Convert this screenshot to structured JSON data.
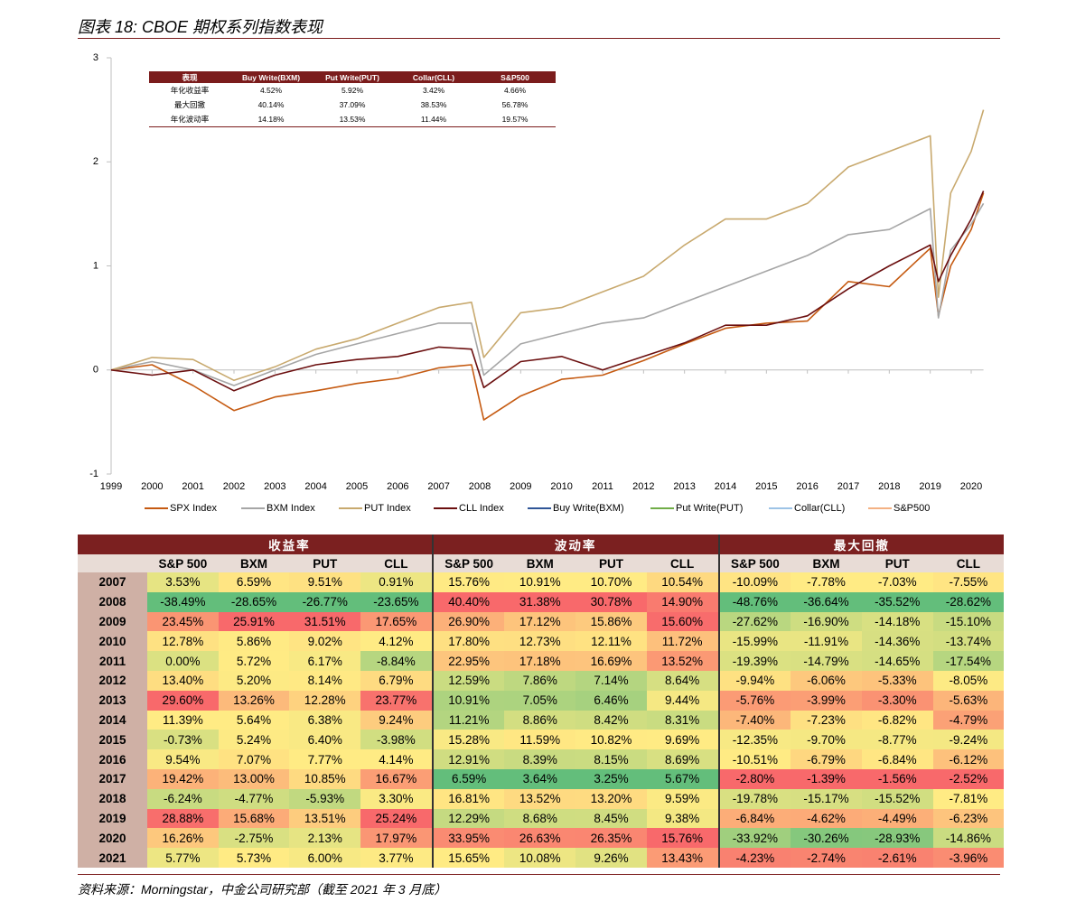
{
  "title": "图表 18: CBOE 期权系列指数表现",
  "chart_data": {
    "type": "line",
    "x": [
      1999,
      2000,
      2001,
      2002,
      2003,
      2004,
      2005,
      2006,
      2007,
      2007.8,
      2008.1,
      2009,
      2010,
      2011,
      2012,
      2013,
      2014,
      2015,
      2016,
      2017,
      2018,
      2019,
      2019.2,
      2019.5,
      2020,
      2020.3
    ],
    "xlim": [
      1999,
      2020.3
    ],
    "xticks": [
      1999,
      2000,
      2001,
      2002,
      2003,
      2004,
      2005,
      2006,
      2007,
      2008,
      2009,
      2010,
      2011,
      2012,
      2013,
      2014,
      2015,
      2016,
      2017,
      2018,
      2019,
      2020
    ],
    "ylim": [
      -1,
      3
    ],
    "yticks": [
      -1,
      0,
      1,
      2,
      3
    ],
    "series": [
      {
        "name": "SPX Index",
        "color": "#c55a11",
        "values": [
          0,
          0.05,
          -0.15,
          -0.39,
          -0.26,
          -0.2,
          -0.13,
          -0.08,
          0.02,
          0.05,
          -0.48,
          -0.25,
          -0.09,
          -0.05,
          0.09,
          0.25,
          0.4,
          0.45,
          0.47,
          0.85,
          0.8,
          1.17,
          0.52,
          1.0,
          1.35,
          1.7
        ]
      },
      {
        "name": "BXM Index",
        "color": "#a6a6a6",
        "values": [
          0,
          0.08,
          0.0,
          -0.15,
          0.0,
          0.15,
          0.25,
          0.35,
          0.45,
          0.45,
          -0.05,
          0.25,
          0.35,
          0.45,
          0.5,
          0.65,
          0.8,
          0.95,
          1.1,
          1.3,
          1.35,
          1.55,
          0.5,
          1.15,
          1.4,
          1.6
        ]
      },
      {
        "name": "PUT Index",
        "color": "#c8a96e",
        "values": [
          0,
          0.12,
          0.1,
          -0.1,
          0.03,
          0.2,
          0.3,
          0.45,
          0.6,
          0.65,
          0.12,
          0.55,
          0.6,
          0.75,
          0.9,
          1.2,
          1.45,
          1.45,
          1.6,
          1.95,
          2.1,
          2.25,
          0.7,
          1.7,
          2.1,
          2.5
        ]
      },
      {
        "name": "CLL Index",
        "color": "#6b0f0f",
        "values": [
          0,
          -0.05,
          0.0,
          -0.2,
          -0.05,
          0.05,
          0.1,
          0.13,
          0.22,
          0.2,
          -0.17,
          0.08,
          0.13,
          0.0,
          0.13,
          0.26,
          0.43,
          0.43,
          0.52,
          0.78,
          1.0,
          1.2,
          0.85,
          1.1,
          1.45,
          1.72
        ]
      },
      {
        "name": "Buy Write(BXM)",
        "color": "#2f5597",
        "values": [
          null,
          null,
          null,
          null,
          null,
          null,
          null,
          null,
          null,
          null,
          null,
          null,
          null,
          null,
          null,
          null,
          null,
          null,
          null,
          null,
          null,
          null,
          null,
          null,
          null,
          null
        ]
      },
      {
        "name": "Put Write(PUT)",
        "color": "#70ad47",
        "values": [
          null,
          null,
          null,
          null,
          null,
          null,
          null,
          null,
          null,
          null,
          null,
          null,
          null,
          null,
          null,
          null,
          null,
          null,
          null,
          null,
          null,
          null,
          null,
          null,
          null,
          null
        ]
      },
      {
        "name": "Collar(CLL)",
        "color": "#9dc3e6",
        "values": [
          null,
          null,
          null,
          null,
          null,
          null,
          null,
          null,
          null,
          null,
          null,
          null,
          null,
          null,
          null,
          null,
          null,
          null,
          null,
          null,
          null,
          null,
          null,
          null,
          null,
          null
        ]
      },
      {
        "name": "S&P500",
        "color": "#f4b183",
        "values": [
          null,
          null,
          null,
          null,
          null,
          null,
          null,
          null,
          null,
          null,
          null,
          null,
          null,
          null,
          null,
          null,
          null,
          null,
          null,
          null,
          null,
          null,
          null,
          null,
          null,
          null
        ]
      }
    ]
  },
  "inset_table": {
    "header": [
      "表现",
      "Buy Write(BXM)",
      "Put Write(PUT)",
      "Collar(CLL)",
      "S&P500"
    ],
    "rows": [
      [
        "年化收益率",
        "4.52%",
        "5.92%",
        "3.42%",
        "4.66%"
      ],
      [
        "最大回撤",
        "40.14%",
        "37.09%",
        "38.53%",
        "56.78%"
      ],
      [
        "年化波动率",
        "14.18%",
        "13.53%",
        "11.44%",
        "19.57%"
      ]
    ]
  },
  "heatmap": {
    "groups": [
      "收益率",
      "波动率",
      "最大回撤"
    ],
    "columns": [
      "S&P 500",
      "BXM",
      "PUT",
      "CLL",
      "S&P 500",
      "BXM",
      "PUT",
      "CLL",
      "S&P 500",
      "BXM",
      "PUT",
      "CLL"
    ],
    "color_scale": {
      "low": "#63be7b",
      "mid": "#ffeb84",
      "high": "#f8696b"
    },
    "rows": [
      {
        "year": "2007",
        "cells": [
          "3.53%",
          "6.59%",
          "9.51%",
          "0.91%",
          "15.76%",
          "10.91%",
          "10.70%",
          "10.54%",
          "-10.09%",
          "-7.78%",
          "-7.03%",
          "-7.55%"
        ]
      },
      {
        "year": "2008",
        "cells": [
          "-38.49%",
          "-28.65%",
          "-26.77%",
          "-23.65%",
          "40.40%",
          "31.38%",
          "30.78%",
          "14.90%",
          "-48.76%",
          "-36.64%",
          "-35.52%",
          "-28.62%"
        ]
      },
      {
        "year": "2009",
        "cells": [
          "23.45%",
          "25.91%",
          "31.51%",
          "17.65%",
          "26.90%",
          "17.12%",
          "15.86%",
          "15.60%",
          "-27.62%",
          "-16.90%",
          "-14.18%",
          "-15.10%"
        ]
      },
      {
        "year": "2010",
        "cells": [
          "12.78%",
          "5.86%",
          "9.02%",
          "4.12%",
          "17.80%",
          "12.73%",
          "12.11%",
          "11.72%",
          "-15.99%",
          "-11.91%",
          "-14.36%",
          "-13.74%"
        ]
      },
      {
        "year": "2011",
        "cells": [
          "0.00%",
          "5.72%",
          "6.17%",
          "-8.84%",
          "22.95%",
          "17.18%",
          "16.69%",
          "13.52%",
          "-19.39%",
          "-14.79%",
          "-14.65%",
          "-17.54%"
        ]
      },
      {
        "year": "2012",
        "cells": [
          "13.40%",
          "5.20%",
          "8.14%",
          "6.79%",
          "12.59%",
          "7.86%",
          "7.14%",
          "8.64%",
          "-9.94%",
          "-6.06%",
          "-5.33%",
          "-8.05%"
        ]
      },
      {
        "year": "2013",
        "cells": [
          "29.60%",
          "13.26%",
          "12.28%",
          "23.77%",
          "10.91%",
          "7.05%",
          "6.46%",
          "9.44%",
          "-5.76%",
          "-3.99%",
          "-3.30%",
          "-5.63%"
        ]
      },
      {
        "year": "2014",
        "cells": [
          "11.39%",
          "5.64%",
          "6.38%",
          "9.24%",
          "11.21%",
          "8.86%",
          "8.42%",
          "8.31%",
          "-7.40%",
          "-7.23%",
          "-6.82%",
          "-4.79%"
        ]
      },
      {
        "year": "2015",
        "cells": [
          "-0.73%",
          "5.24%",
          "6.40%",
          "-3.98%",
          "15.28%",
          "11.59%",
          "10.82%",
          "9.69%",
          "-12.35%",
          "-9.70%",
          "-8.77%",
          "-9.24%"
        ]
      },
      {
        "year": "2016",
        "cells": [
          "9.54%",
          "7.07%",
          "7.77%",
          "4.14%",
          "12.91%",
          "8.39%",
          "8.15%",
          "8.69%",
          "-10.51%",
          "-6.79%",
          "-6.84%",
          "-6.12%"
        ]
      },
      {
        "year": "2017",
        "cells": [
          "19.42%",
          "13.00%",
          "10.85%",
          "16.67%",
          "6.59%",
          "3.64%",
          "3.25%",
          "5.67%",
          "-2.80%",
          "-1.39%",
          "-1.56%",
          "-2.52%"
        ]
      },
      {
        "year": "2018",
        "cells": [
          "-6.24%",
          "-4.77%",
          "-5.93%",
          "3.30%",
          "16.81%",
          "13.52%",
          "13.20%",
          "9.59%",
          "-19.78%",
          "-15.17%",
          "-15.52%",
          "-7.81%"
        ]
      },
      {
        "year": "2019",
        "cells": [
          "28.88%",
          "15.68%",
          "13.51%",
          "25.24%",
          "12.29%",
          "8.68%",
          "8.45%",
          "9.38%",
          "-6.84%",
          "-4.62%",
          "-4.49%",
          "-6.23%"
        ]
      },
      {
        "year": "2020",
        "cells": [
          "16.26%",
          "-2.75%",
          "2.13%",
          "17.97%",
          "33.95%",
          "26.63%",
          "26.35%",
          "15.76%",
          "-33.92%",
          "-30.26%",
          "-28.93%",
          "-14.86%"
        ]
      },
      {
        "year": "2021",
        "cells": [
          "5.77%",
          "5.73%",
          "6.00%",
          "3.77%",
          "15.65%",
          "10.08%",
          "9.26%",
          "13.43%",
          "-4.23%",
          "-2.74%",
          "-2.61%",
          "-3.96%"
        ]
      }
    ]
  },
  "source": "资料来源：Morningstar，中金公司研究部（截至 2021 年 3 月底）"
}
